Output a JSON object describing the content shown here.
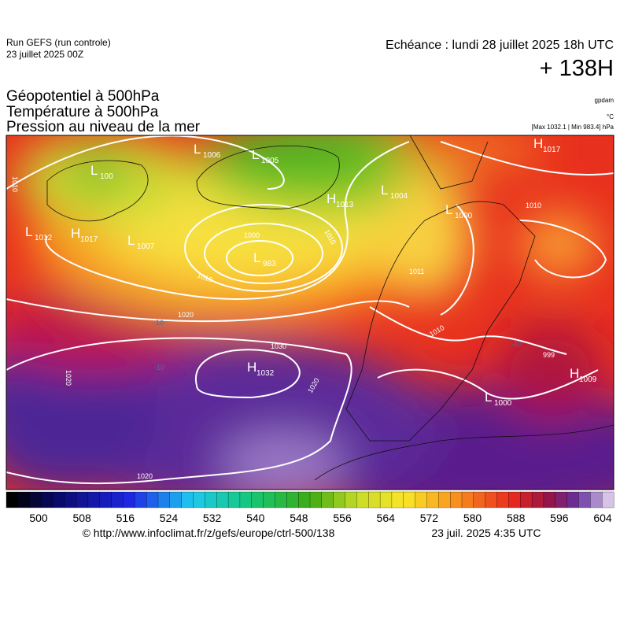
{
  "header": {
    "run": "Run GEFS (run controle)",
    "run_date": "23 juillet 2025 00Z",
    "valid": "Echéance : lundi 28 juillet 2025 18h UTC",
    "lead": "+ 138H"
  },
  "titles": [
    "Géopotentiel à 500hPa",
    "Température à 500hPa",
    "Pression au niveau de la mer"
  ],
  "units": {
    "geopotential": "gpdam",
    "temperature": "°C",
    "pressure": "[Max 1032.1 | Min 983.4] hPa"
  },
  "map": {
    "centers": [
      {
        "kind": "L",
        "value": "100"
      },
      {
        "kind": "L",
        "value": "1006"
      },
      {
        "kind": "L",
        "value": "1005"
      },
      {
        "kind": "H",
        "value": "1013"
      },
      {
        "kind": "L",
        "value": "1004"
      },
      {
        "kind": "L",
        "value": "1000"
      },
      {
        "kind": "H",
        "value": "1017"
      },
      {
        "kind": "L",
        "value": "1012"
      },
      {
        "kind": "H",
        "value": "1017"
      },
      {
        "kind": "L",
        "value": "1007"
      },
      {
        "kind": "L",
        "value": "983"
      },
      {
        "kind": "H",
        "value": "1032"
      },
      {
        "kind": "H",
        "value": "1009"
      },
      {
        "kind": "L",
        "value": "1000"
      }
    ],
    "isobar_labels": [
      "1010",
      "1000",
      "1010",
      "1010",
      "1020",
      "1030",
      "1020",
      "1020",
      "1010",
      "1011",
      "1010",
      "999",
      "1020"
    ],
    "temperature_labels": [
      "-10",
      "-10",
      "-10"
    ]
  },
  "colorbar": {
    "ticks": [
      500,
      508,
      516,
      524,
      532,
      540,
      548,
      556,
      564,
      572,
      580,
      588,
      596,
      604
    ]
  },
  "footer": {
    "source": "© http://www.infoclimat.fr/z/gefs/europe/ctrl-500/138",
    "generated": "23 juil. 2025  4:35 UTC"
  }
}
